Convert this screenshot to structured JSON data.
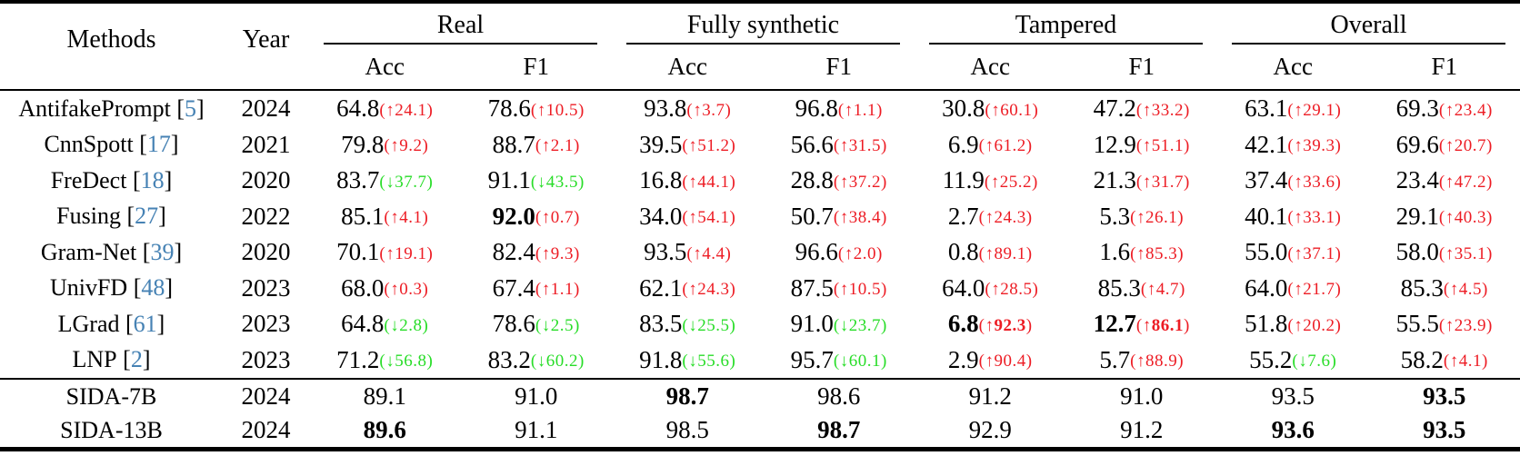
{
  "table": {
    "header": {
      "methods": "Methods",
      "year": "Year",
      "acc": "Acc",
      "f1": "F1"
    },
    "groups": [
      "Real",
      "Fully synthetic",
      "Tampered",
      "Overall"
    ],
    "rows": [
      {
        "method": "AntifakePrompt",
        "cite": "5",
        "year": "2024",
        "cells": [
          {
            "v": "64.8",
            "arrow": "up",
            "d": "24.1"
          },
          {
            "v": "78.6",
            "arrow": "up",
            "d": "10.5"
          },
          {
            "v": "93.8",
            "arrow": "up",
            "d": "3.7"
          },
          {
            "v": "96.8",
            "arrow": "up",
            "d": "1.1"
          },
          {
            "v": "30.8",
            "arrow": "up",
            "d": "60.1"
          },
          {
            "v": "47.2",
            "arrow": "up",
            "d": "33.2"
          },
          {
            "v": "63.1",
            "arrow": "up",
            "d": "29.1"
          },
          {
            "v": "69.3",
            "arrow": "up",
            "d": "23.4"
          }
        ]
      },
      {
        "method": "CnnSpott",
        "cite": "17",
        "year": "2021",
        "cells": [
          {
            "v": "79.8",
            "arrow": "up",
            "d": "9.2"
          },
          {
            "v": "88.7",
            "arrow": "up",
            "d": "2.1"
          },
          {
            "v": "39.5",
            "arrow": "up",
            "d": "51.2"
          },
          {
            "v": "56.6",
            "arrow": "up",
            "d": "31.5"
          },
          {
            "v": "6.9",
            "arrow": "up",
            "d": "61.2"
          },
          {
            "v": "12.9",
            "arrow": "up",
            "d": "51.1"
          },
          {
            "v": "42.1",
            "arrow": "up",
            "d": "39.3"
          },
          {
            "v": "69.6",
            "arrow": "up",
            "d": "20.7"
          }
        ]
      },
      {
        "method": "FreDect",
        "cite": "18",
        "year": "2020",
        "cells": [
          {
            "v": "83.7",
            "arrow": "down",
            "d": "37.7"
          },
          {
            "v": "91.1",
            "arrow": "down",
            "d": "43.5"
          },
          {
            "v": "16.8",
            "arrow": "up",
            "d": "44.1"
          },
          {
            "v": "28.8",
            "arrow": "up",
            "d": "37.2"
          },
          {
            "v": "11.9",
            "arrow": "up",
            "d": "25.2"
          },
          {
            "v": "21.3",
            "arrow": "up",
            "d": "31.7"
          },
          {
            "v": "37.4",
            "arrow": "up",
            "d": "33.6"
          },
          {
            "v": "23.4",
            "arrow": "up",
            "d": "47.2"
          }
        ]
      },
      {
        "method": "Fusing",
        "cite": "27",
        "year": "2022",
        "cells": [
          {
            "v": "85.1",
            "arrow": "up",
            "d": "4.1"
          },
          {
            "v": "92.0",
            "vb": true,
            "arrow": "up",
            "d": "0.7"
          },
          {
            "v": "34.0",
            "arrow": "up",
            "d": "54.1"
          },
          {
            "v": "50.7",
            "arrow": "up",
            "d": "38.4"
          },
          {
            "v": "2.7",
            "arrow": "up",
            "d": "24.3"
          },
          {
            "v": "5.3",
            "arrow": "up",
            "d": "26.1"
          },
          {
            "v": "40.1",
            "arrow": "up",
            "d": "33.1"
          },
          {
            "v": "29.1",
            "arrow": "up",
            "d": "40.3"
          }
        ]
      },
      {
        "method": "Gram-Net",
        "cite": "39",
        "year": "2020",
        "cells": [
          {
            "v": "70.1",
            "arrow": "up",
            "d": "19.1"
          },
          {
            "v": "82.4",
            "arrow": "up",
            "d": "9.3"
          },
          {
            "v": "93.5",
            "arrow": "up",
            "d": "4.4"
          },
          {
            "v": "96.6",
            "arrow": "up",
            "d": "2.0"
          },
          {
            "v": "0.8",
            "arrow": "up",
            "d": "89.1"
          },
          {
            "v": "1.6",
            "arrow": "up",
            "d": "85.3"
          },
          {
            "v": "55.0",
            "arrow": "up",
            "d": "37.1"
          },
          {
            "v": "58.0",
            "arrow": "up",
            "d": "35.1"
          }
        ]
      },
      {
        "method": "UnivFD",
        "cite": "48",
        "year": "2023",
        "cells": [
          {
            "v": "68.0",
            "arrow": "up",
            "d": "0.3"
          },
          {
            "v": "67.4",
            "arrow": "up",
            "d": "1.1"
          },
          {
            "v": "62.1",
            "arrow": "up",
            "d": "24.3"
          },
          {
            "v": "87.5",
            "arrow": "up",
            "d": "10.5"
          },
          {
            "v": "64.0",
            "arrow": "up",
            "d": "28.5"
          },
          {
            "v": "85.3",
            "arrow": "up",
            "d": "4.7"
          },
          {
            "v": "64.0",
            "arrow": "up",
            "d": "21.7"
          },
          {
            "v": "85.3",
            "arrow": "up",
            "d": "4.5"
          }
        ]
      },
      {
        "method": "LGrad",
        "cite": "61",
        "year": "2023",
        "cells": [
          {
            "v": "64.8",
            "arrow": "down",
            "d": "2.8"
          },
          {
            "v": "78.6",
            "arrow": "down",
            "d": "2.5"
          },
          {
            "v": "83.5",
            "arrow": "down",
            "d": "25.5"
          },
          {
            "v": "91.0",
            "arrow": "down",
            "d": "23.7"
          },
          {
            "v": "6.8",
            "vb": true,
            "arrow": "up",
            "d": "92.3",
            "db": true
          },
          {
            "v": "12.7",
            "vb": true,
            "arrow": "up",
            "d": "86.1",
            "db": true
          },
          {
            "v": "51.8",
            "arrow": "up",
            "d": "20.2"
          },
          {
            "v": "55.5",
            "arrow": "up",
            "d": "23.9"
          }
        ]
      },
      {
        "method": "LNP",
        "cite": "2",
        "year": "2023",
        "cells": [
          {
            "v": "71.2",
            "arrow": "down",
            "d": "56.8"
          },
          {
            "v": "83.2",
            "arrow": "down",
            "d": "60.2"
          },
          {
            "v": "91.8",
            "arrow": "down",
            "d": "55.6"
          },
          {
            "v": "95.7",
            "arrow": "down",
            "d": "60.1"
          },
          {
            "v": "2.9",
            "arrow": "up",
            "d": "90.4"
          },
          {
            "v": "5.7",
            "arrow": "up",
            "d": "88.9"
          },
          {
            "v": "55.2",
            "arrow": "down",
            "d": "7.6"
          },
          {
            "v": "58.2",
            "arrow": "up",
            "d": "4.1"
          }
        ]
      }
    ],
    "sida_rows": [
      {
        "method": "SIDA-7B",
        "year": "2024",
        "cells": [
          {
            "v": "89.1"
          },
          {
            "v": "91.0"
          },
          {
            "v": "98.7",
            "vb": true
          },
          {
            "v": "98.6"
          },
          {
            "v": "91.2"
          },
          {
            "v": "91.0"
          },
          {
            "v": "93.5"
          },
          {
            "v": "93.5",
            "vb": true
          }
        ]
      },
      {
        "method": "SIDA-13B",
        "year": "2024",
        "cells": [
          {
            "v": "89.6",
            "vb": true
          },
          {
            "v": "91.1"
          },
          {
            "v": "98.5"
          },
          {
            "v": "98.7",
            "vb": true
          },
          {
            "v": "92.9"
          },
          {
            "v": "91.2"
          },
          {
            "v": "93.6",
            "vb": true
          },
          {
            "v": "93.5",
            "vb": true
          }
        ]
      }
    ]
  },
  "glyphs": {
    "up_arrow": "↑",
    "down_arrow": "↓"
  },
  "colors": {
    "increase_red": "#ed1c24",
    "decrease_green": "#28dd28",
    "citation_blue": "#4682b4",
    "text": "#000000",
    "background": "#ffffff"
  }
}
